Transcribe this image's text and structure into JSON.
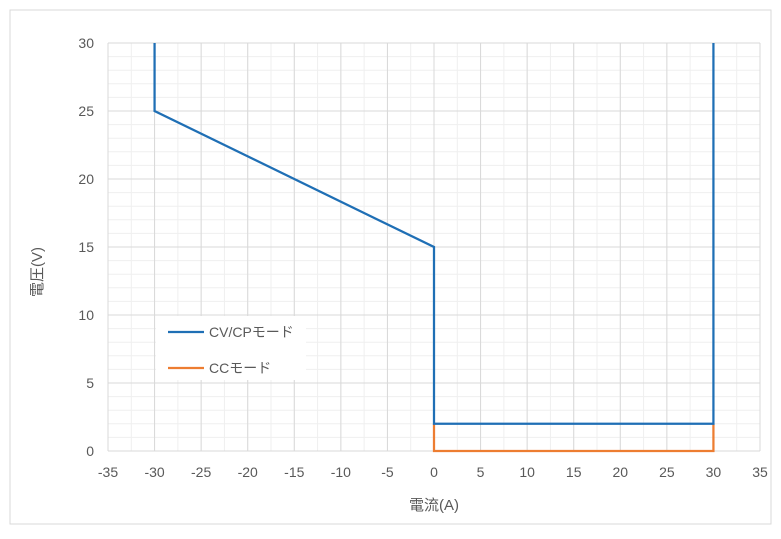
{
  "chart_data": {
    "type": "line",
    "xlabel": "電流(A)",
    "ylabel": "電圧(V)",
    "xlim": [
      -35,
      35
    ],
    "ylim": [
      0,
      30
    ],
    "x_major_ticks": [
      -35,
      -30,
      -25,
      -20,
      -15,
      -10,
      -5,
      0,
      5,
      10,
      15,
      20,
      25,
      30,
      35
    ],
    "y_major_ticks": [
      0,
      5,
      10,
      15,
      20,
      25,
      30
    ],
    "x_minor_step": 2.5,
    "y_minor_step": 1,
    "grid": true,
    "legend_position": "lower-left",
    "series": [
      {
        "name": "CV/CPモード",
        "color": "#1f6fb5",
        "points": [
          [
            -30,
            30
          ],
          [
            -30,
            25
          ],
          [
            0,
            15
          ],
          [
            0,
            2
          ],
          [
            30,
            2
          ],
          [
            30,
            30
          ]
        ]
      },
      {
        "name": "CCモード",
        "color": "#ed7d31",
        "points": [
          [
            0,
            2
          ],
          [
            0,
            0
          ],
          [
            30,
            0
          ],
          [
            30,
            2
          ]
        ]
      }
    ]
  }
}
